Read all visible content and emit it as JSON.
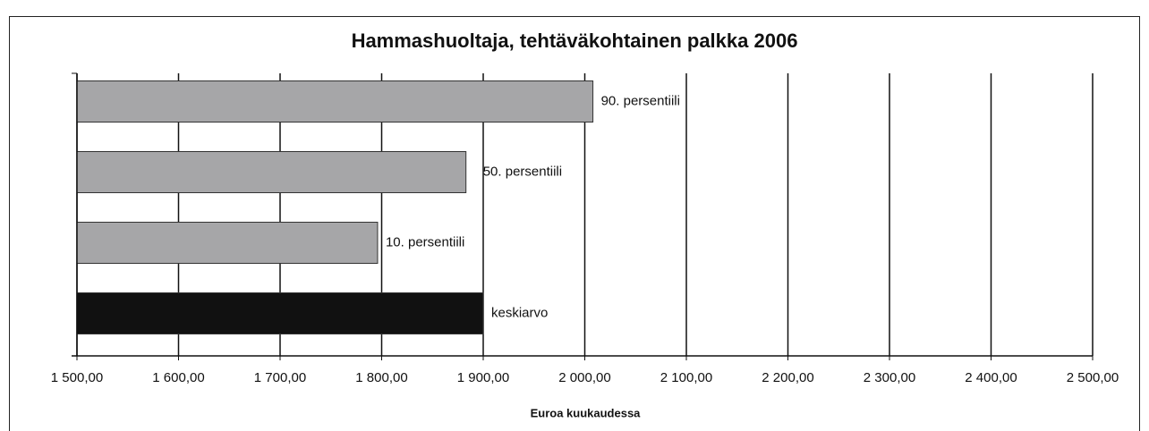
{
  "chart_data": {
    "type": "barh",
    "title": "Hammashuoltaja, tehtäväkohtainen palkka 2006",
    "x_label": "Euroa kuukaudessa",
    "categories": [
      "90. persentiili",
      "50. persentiili",
      "10. persentiili",
      "keskiarvo"
    ],
    "values": [
      2008,
      1883,
      1796,
      1900
    ],
    "colors": [
      "#a6a6a8",
      "#a6a6a8",
      "#a6a6a8",
      "#111111"
    ],
    "xlim": [
      1500,
      2500
    ],
    "xticks": [
      {
        "value": 1500,
        "label": "1 500,00"
      },
      {
        "value": 1600,
        "label": "1 600,00"
      },
      {
        "value": 1700,
        "label": "1 700,00"
      },
      {
        "value": 1800,
        "label": "1 800,00"
      },
      {
        "value": 1900,
        "label": "1 900,00"
      },
      {
        "value": 2000,
        "label": "2 000,00"
      },
      {
        "value": 2100,
        "label": "2 100,00"
      },
      {
        "value": 2200,
        "label": "2 200,00"
      },
      {
        "value": 2300,
        "label": "2 300,00"
      },
      {
        "value": 2400,
        "label": "2 400,00"
      },
      {
        "value": 2500,
        "label": "2 500,00"
      }
    ],
    "grid": true
  }
}
